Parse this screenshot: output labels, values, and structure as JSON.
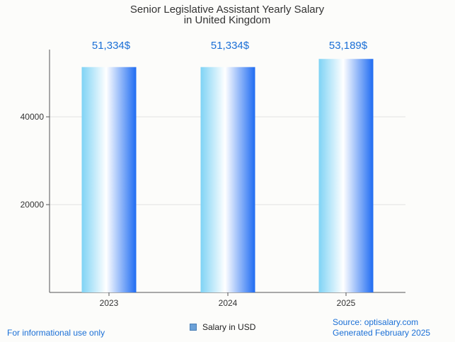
{
  "chart_data": {
    "type": "bar",
    "title": "Senior Legislative Assistant Yearly Salary",
    "subtitle": "in United Kingdom",
    "categories": [
      "2023",
      "2024",
      "2025"
    ],
    "values": [
      51334,
      51334,
      53189
    ],
    "data_labels": [
      "51,334$",
      "51,334$",
      "53,189$"
    ],
    "y_ticks": [
      "20000",
      "40000"
    ],
    "ylim": [
      0,
      55000
    ],
    "grid": true,
    "legend": {
      "position": "bottom",
      "entries": [
        {
          "name": "Salary in USD"
        }
      ]
    },
    "series": [
      {
        "name": "Salary in USD",
        "values": [
          51334,
          51334,
          53189
        ]
      }
    ],
    "colors": {
      "bar_edge_light": "#7fd3f5",
      "bar_center": "#ffffff",
      "bar_edge_dark": "#1f6cf2",
      "label": "#1a6fd6"
    }
  },
  "footer": {
    "left_note": "For informational use only",
    "source": "Source: optisalary.com",
    "generated": "Generated February 2025"
  }
}
